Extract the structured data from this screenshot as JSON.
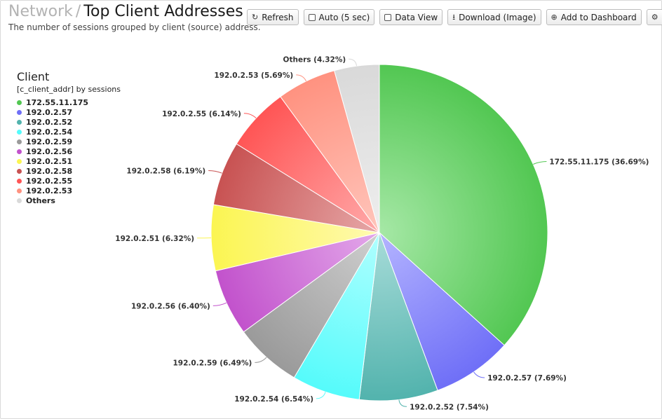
{
  "header": {
    "breadcrumb": "Network",
    "separator": "/",
    "title": "Top Client Addresses",
    "subtitle": "The number of sessions grouped by client (source) address."
  },
  "toolbar": {
    "refresh": "Refresh",
    "auto": "Auto (5 sec)",
    "data_view": "Data View",
    "download": "Download (Image)",
    "add_dashboard": "Add to Dashboard",
    "settings": "S"
  },
  "legend": {
    "title": "Client",
    "subtitle": "[c_client_addr] by sessions"
  },
  "chart_data": {
    "type": "pie",
    "slices": [
      {
        "label": "172.55.11.175",
        "value": 36.69,
        "display": "172.55.11.175 (36.69%)",
        "color": "#52c752",
        "light": "#a6e8a6"
      },
      {
        "label": "192.0.2.57",
        "value": 7.69,
        "display": "192.0.2.57 (7.69%)",
        "color": "#6f6ff7",
        "light": "#b4b4ff"
      },
      {
        "label": "192.0.2.52",
        "value": 7.54,
        "display": "192.0.2.52 (7.54%)",
        "color": "#52b3ad",
        "light": "#a8dcd9"
      },
      {
        "label": "192.0.2.54",
        "value": 6.54,
        "display": "192.0.2.54 (6.54%)",
        "color": "#55fbfb",
        "light": "#b0ffff"
      },
      {
        "label": "192.0.2.59",
        "value": 6.49,
        "display": "192.0.2.59 (6.49%)",
        "color": "#9a9a9a",
        "light": "#cfcfcf"
      },
      {
        "label": "192.0.2.56",
        "value": 6.4,
        "display": "192.0.2.56 (6.40%)",
        "color": "#c252cc",
        "light": "#e3a8ea"
      },
      {
        "label": "192.0.2.51",
        "value": 6.32,
        "display": "192.0.2.51 (6.32%)",
        "color": "#fbf552",
        "light": "#fffab0"
      },
      {
        "label": "192.0.2.58",
        "value": 6.19,
        "display": "192.0.2.58 (6.19%)",
        "color": "#c85252",
        "light": "#e6a8a8"
      },
      {
        "label": "192.0.2.55",
        "value": 6.14,
        "display": "192.0.2.55 (6.14%)",
        "color": "#ff5555",
        "light": "#ffaaaa"
      },
      {
        "label": "192.0.2.53",
        "value": 5.69,
        "display": "192.0.2.53 (5.69%)",
        "color": "#ff9280",
        "light": "#ffc6bc"
      },
      {
        "label": "Others",
        "value": 4.32,
        "display": "Others (4.32%)",
        "color": "#d9d9d9",
        "light": "#eeeeee"
      }
    ]
  }
}
